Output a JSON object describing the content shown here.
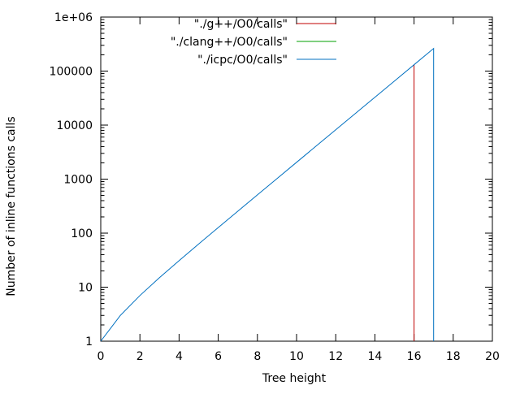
{
  "chart_data": {
    "type": "line",
    "title": "",
    "xlabel": "Tree height",
    "ylabel": "Number of inline functions calls",
    "xlim": [
      0,
      20
    ],
    "ylim": [
      1,
      1000000
    ],
    "yscale": "log",
    "grid": false,
    "legend_position": "top-center",
    "x_ticks": [
      0,
      2,
      4,
      6,
      8,
      10,
      12,
      14,
      16,
      18,
      20
    ],
    "x_tick_labels": [
      "0",
      "2",
      "4",
      "6",
      "8",
      "10",
      "12",
      "14",
      "16",
      "18",
      "20"
    ],
    "y_ticks": [
      1,
      10,
      100,
      1000,
      10000,
      100000,
      1000000
    ],
    "y_tick_labels": [
      "1",
      "10",
      "100",
      "1000",
      "10000",
      "100000",
      "1e+06"
    ],
    "series": [
      {
        "name": "\"./g++/O0/calls\"",
        "color": "#c00000",
        "x": [
          16,
          16
        ],
        "y": [
          1,
          131070
        ]
      },
      {
        "name": "\"./clang++/O0/calls\"",
        "color": "#00a000",
        "x": [],
        "y": []
      },
      {
        "name": "\"./icpc/O0/calls\"",
        "color": "#0070c0",
        "x": [
          0,
          1,
          2,
          3,
          4,
          5,
          6,
          7,
          8,
          9,
          10,
          11,
          12,
          13,
          14,
          15,
          16,
          17,
          17
        ],
        "y": [
          1,
          3,
          7,
          15,
          31,
          63,
          127,
          255,
          511,
          1023,
          2047,
          4095,
          8191,
          16383,
          32767,
          65535,
          131071,
          262143,
          1
        ]
      }
    ]
  }
}
